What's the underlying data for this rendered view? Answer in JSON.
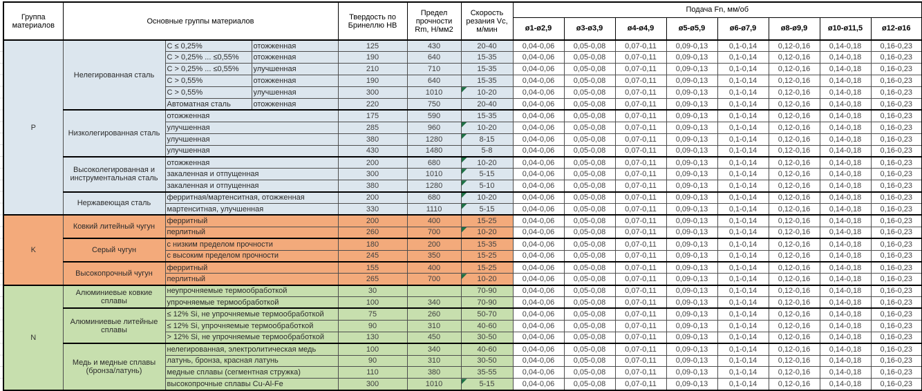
{
  "table": {
    "headers": {
      "group": "Группа материалов",
      "material": "Основные группы материалов",
      "hardness": "Твердость по Бринеллю HB",
      "strength": "Предел прочности Rm, Н/мм2",
      "speed": "Скорость резания Vc, м/мин",
      "feed": "Подача Fn, мм/об",
      "feed_cols": [
        "ø1-ø2,9",
        "ø3-ø3,9",
        "ø4-ø4,9",
        "ø5-ø5,9",
        "ø6-ø7,9",
        "ø8-ø9,9",
        "ø10-ø11,5",
        "ø12-ø16"
      ]
    },
    "feed_values": [
      "0,04-0,06",
      "0,05-0,08",
      "0,07-0,11",
      "0,09-0,13",
      "0,1-0,14",
      "0,12-0,16",
      "0,14-0,18",
      "0,16-0,23"
    ],
    "group_colors": {
      "P": "#dce6ee",
      "K": "#f3aa7b",
      "N": "#c7dfae"
    },
    "flag_color": "#1e7145",
    "rows": [
      {
        "g": "P",
        "gspan": 15,
        "s": "Нелегированная сталь",
        "sspan": 6,
        "a": "C ≤ 0,25%",
        "b": "отожженная",
        "hb": "125",
        "rm": "430",
        "vc": "20-40"
      },
      {
        "a": "C > 0,25% ... ≤0,55%",
        "b": "отожженная",
        "hb": "190",
        "rm": "640",
        "vc": "15-35"
      },
      {
        "a": "C > 0,25% ... ≤0,55%",
        "b": "улучшенная",
        "hb": "210",
        "rm": "710",
        "vc": "15-35"
      },
      {
        "a": "C > 0,55%",
        "b": "отожженная",
        "hb": "190",
        "rm": "640",
        "vc": "15-35"
      },
      {
        "a": "C > 0,55%",
        "b": "улучшенная",
        "hb": "300",
        "rm": "1010",
        "vc": "10-20",
        "flag": true
      },
      {
        "a": "Автоматная сталь",
        "b": "отожженная",
        "hb": "220",
        "rm": "750",
        "vc": "20-40"
      },
      {
        "s": "Низколегированная сталь",
        "sspan": 4,
        "a": "отожженная",
        "hb": "175",
        "rm": "590",
        "vc": "15-35"
      },
      {
        "a": "улучшенная",
        "hb": "285",
        "rm": "960",
        "vc": "10-20",
        "flag": true
      },
      {
        "a": "улучшенная",
        "hb": "380",
        "rm": "1280",
        "vc": "8-15",
        "flag": true
      },
      {
        "a": "улучшенная",
        "hb": "430",
        "rm": "1480",
        "vc": "5-8"
      },
      {
        "s": "Высоколегированная и инструментальная сталь",
        "sspan": 3,
        "a": "отожженная",
        "hb": "200",
        "rm": "680",
        "vc": "10-20",
        "flag": true
      },
      {
        "a": "закаленная и отпущенная",
        "hb": "300",
        "rm": "1010",
        "vc": "5-15",
        "flag": true
      },
      {
        "a": "закаленная и отпущенная",
        "hb": "380",
        "rm": "1280",
        "vc": "5-10",
        "flag": true
      },
      {
        "s": "Нержавеющая сталь",
        "sspan": 2,
        "a": "ферритная/мартенситная, отожженная",
        "hb": "200",
        "rm": "680",
        "vc": "10-20",
        "flag": true
      },
      {
        "a": "мартенситная, улучшенная",
        "hb": "330",
        "rm": "1110",
        "vc": "5-15",
        "flag": true
      },
      {
        "g": "K",
        "gspan": 6,
        "s": "Ковкий литейный чугун",
        "sspan": 2,
        "a": "ферритный",
        "hb": "200",
        "rm": "400",
        "vc": "15-25"
      },
      {
        "a": "перлитный",
        "hb": "260",
        "rm": "700",
        "vc": "10-20",
        "flag": true
      },
      {
        "s": "Серый чугун",
        "sspan": 2,
        "a": "с низким пределом прочности",
        "hb": "180",
        "rm": "200",
        "vc": "15-35"
      },
      {
        "a": "с высоким пределом прочности",
        "hb": "245",
        "rm": "350",
        "vc": "15-25"
      },
      {
        "s": "Высокопрочный чугун",
        "sspan": 2,
        "a": "ферритный",
        "hb": "155",
        "rm": "400",
        "vc": "15-25"
      },
      {
        "a": "перлитный",
        "hb": "265",
        "rm": "700",
        "vc": "10-20",
        "flag": true
      },
      {
        "g": "N",
        "gspan": 9,
        "s": "Алюминиевые ковкие сплавы",
        "sspan": 2,
        "a": "неупрочняемые термообработкой",
        "hb": "30",
        "rm": "",
        "vc": "70-90"
      },
      {
        "a": "упрочняемые термообработкой",
        "hb": "100",
        "rm": "340",
        "vc": "70-90"
      },
      {
        "s": "Алюминиевые литейные сплавы",
        "sspan": 3,
        "a": "≤ 12% Si, не упрочняемые термообработкой",
        "hb": "75",
        "rm": "260",
        "vc": "50-70"
      },
      {
        "a": "≤ 12% Si, упрочняемые термообработкой",
        "hb": "90",
        "rm": "310",
        "vc": "40-60"
      },
      {
        "a": "> 12% Si, не упрочняемые термообработкой",
        "hb": "130",
        "rm": "450",
        "vc": "30-50"
      },
      {
        "s": "Медь и медные сплавы (бронза/латунь)",
        "sspan": 4,
        "a": "нелегированная, электролитическая медь",
        "hb": "100",
        "rm": "340",
        "vc": "40-60"
      },
      {
        "a": "латунь, бронза, красная латунь",
        "hb": "90",
        "rm": "310",
        "vc": "30-50"
      },
      {
        "a": "медные сплавы (сегментная стружка)",
        "hb": "110",
        "rm": "380",
        "vc": "35-55"
      },
      {
        "a": "высокопрочные сплавы Cu-Al-Fe",
        "hb": "300",
        "rm": "1010",
        "vc": "5-15",
        "flag": true
      }
    ]
  }
}
